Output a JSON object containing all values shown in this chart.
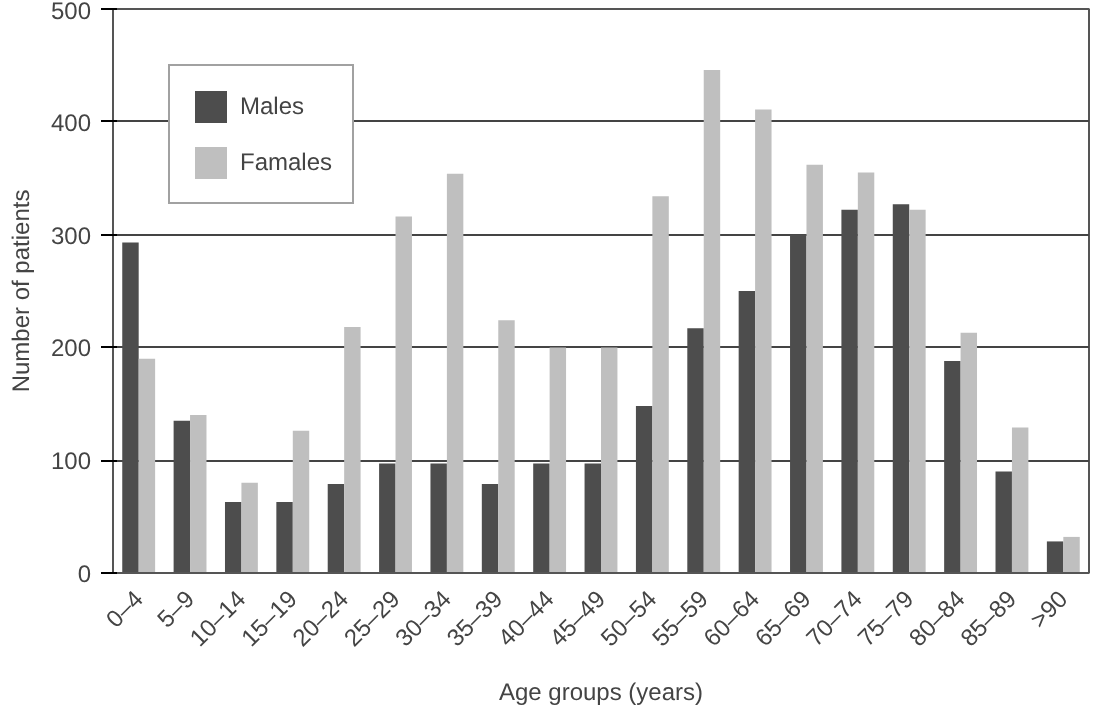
{
  "chart_data": {
    "type": "bar",
    "xlabel": "Age groups (years)",
    "ylabel": "Number of patients",
    "categories": [
      "0–4",
      "5–9",
      "10–14",
      "15–19",
      "20–24",
      "25–29",
      "30–34",
      "35–39",
      "40–44",
      "45–49",
      "50–54",
      "55–59",
      "60–64",
      "65–69",
      "70–74",
      "75–79",
      "80–84",
      "85–89",
      ">90"
    ],
    "series": [
      {
        "name": "Males",
        "color": "#4d4d4d",
        "values": [
          293,
          135,
          63,
          63,
          79,
          97,
          97,
          79,
          97,
          97,
          148,
          217,
          250,
          300,
          322,
          327,
          188,
          90,
          28
        ]
      },
      {
        "name": "Famales",
        "color": "#bfbfbf",
        "values": [
          190,
          140,
          80,
          126,
          218,
          316,
          354,
          224,
          200,
          200,
          334,
          446,
          411,
          362,
          355,
          322,
          213,
          129,
          32
        ]
      }
    ],
    "ylim": [
      0,
      500
    ],
    "yticks": [
      0,
      100,
      200,
      300,
      400,
      500
    ],
    "grid": "y",
    "legend": "top left"
  }
}
